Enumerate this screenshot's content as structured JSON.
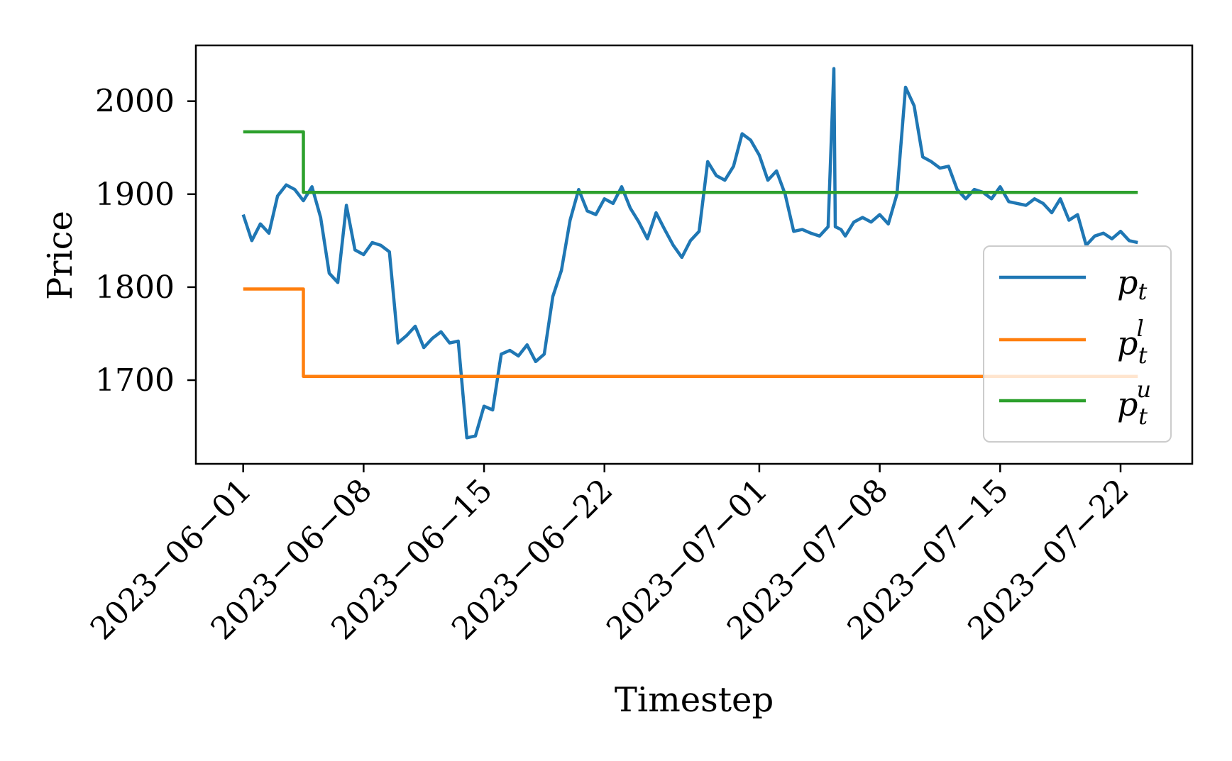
{
  "chart_data": {
    "type": "line",
    "xlabel": "Timestep",
    "ylabel": "Price",
    "x_ticks": [
      "2023−06−01",
      "2023−06−08",
      "2023−06−15",
      "2023−06−22",
      "2023−07−01",
      "2023−07−08",
      "2023−07−15",
      "2023−07−22"
    ],
    "y_ticks": [
      "1700",
      "1800",
      "1900",
      "2000"
    ],
    "ylim": [
      1610,
      2060
    ],
    "xlim": [
      "2023-05-29T06:00",
      "2023-07-26T04:00"
    ],
    "grid": false,
    "legend_position": "right",
    "series": [
      {
        "name": "p_t",
        "color": "#1f77b4",
        "points": [
          [
            "2023-06-01",
            1878
          ],
          [
            "2023-06-01T12:00",
            1850
          ],
          [
            "2023-06-02",
            1868
          ],
          [
            "2023-06-02T12:00",
            1858
          ],
          [
            "2023-06-03",
            1898
          ],
          [
            "2023-06-03T12:00",
            1910
          ],
          [
            "2023-06-04",
            1905
          ],
          [
            "2023-06-04T12:00",
            1893
          ],
          [
            "2023-06-05",
            1908
          ],
          [
            "2023-06-05T12:00",
            1875
          ],
          [
            "2023-06-06",
            1815
          ],
          [
            "2023-06-06T12:00",
            1805
          ],
          [
            "2023-06-07",
            1888
          ],
          [
            "2023-06-07T12:00",
            1840
          ],
          [
            "2023-06-08",
            1835
          ],
          [
            "2023-06-08T12:00",
            1848
          ],
          [
            "2023-06-09",
            1845
          ],
          [
            "2023-06-09T12:00",
            1838
          ],
          [
            "2023-06-10",
            1740
          ],
          [
            "2023-06-10T12:00",
            1748
          ],
          [
            "2023-06-11",
            1758
          ],
          [
            "2023-06-11T12:00",
            1735
          ],
          [
            "2023-06-12",
            1745
          ],
          [
            "2023-06-12T12:00",
            1752
          ],
          [
            "2023-06-13",
            1740
          ],
          [
            "2023-06-13T12:00",
            1742
          ],
          [
            "2023-06-14",
            1638
          ],
          [
            "2023-06-14T12:00",
            1640
          ],
          [
            "2023-06-15",
            1672
          ],
          [
            "2023-06-15T12:00",
            1668
          ],
          [
            "2023-06-16",
            1728
          ],
          [
            "2023-06-16T12:00",
            1732
          ],
          [
            "2023-06-17",
            1726
          ],
          [
            "2023-06-17T12:00",
            1738
          ],
          [
            "2023-06-18",
            1720
          ],
          [
            "2023-06-18T12:00",
            1728
          ],
          [
            "2023-06-19",
            1790
          ],
          [
            "2023-06-19T12:00",
            1818
          ],
          [
            "2023-06-20",
            1872
          ],
          [
            "2023-06-20T12:00",
            1905
          ],
          [
            "2023-06-21",
            1882
          ],
          [
            "2023-06-21T12:00",
            1878
          ],
          [
            "2023-06-22",
            1895
          ],
          [
            "2023-06-22T12:00",
            1890
          ],
          [
            "2023-06-23",
            1908
          ],
          [
            "2023-06-23T12:00",
            1885
          ],
          [
            "2023-06-24",
            1870
          ],
          [
            "2023-06-24T12:00",
            1852
          ],
          [
            "2023-06-25",
            1880
          ],
          [
            "2023-06-25T12:00",
            1862
          ],
          [
            "2023-06-26",
            1845
          ],
          [
            "2023-06-26T12:00",
            1832
          ],
          [
            "2023-06-27",
            1850
          ],
          [
            "2023-06-27T12:00",
            1860
          ],
          [
            "2023-06-28",
            1935
          ],
          [
            "2023-06-28T12:00",
            1920
          ],
          [
            "2023-06-29",
            1915
          ],
          [
            "2023-06-29T12:00",
            1930
          ],
          [
            "2023-06-30",
            1965
          ],
          [
            "2023-06-30T12:00",
            1958
          ],
          [
            "2023-07-01",
            1942
          ],
          [
            "2023-07-01T12:00",
            1915
          ],
          [
            "2023-07-02",
            1925
          ],
          [
            "2023-07-02T12:00",
            1900
          ],
          [
            "2023-07-03",
            1860
          ],
          [
            "2023-07-03T12:00",
            1862
          ],
          [
            "2023-07-04",
            1858
          ],
          [
            "2023-07-04T12:00",
            1855
          ],
          [
            "2023-07-05",
            1865
          ],
          [
            "2023-07-05T08:00",
            2035
          ],
          [
            "2023-07-05T10:00",
            1865
          ],
          [
            "2023-07-05T18:00",
            1862
          ],
          [
            "2023-07-06",
            1855
          ],
          [
            "2023-07-06T12:00",
            1870
          ],
          [
            "2023-07-07",
            1875
          ],
          [
            "2023-07-07T12:00",
            1870
          ],
          [
            "2023-07-08",
            1878
          ],
          [
            "2023-07-08T12:00",
            1868
          ],
          [
            "2023-07-09",
            1900
          ],
          [
            "2023-07-09T12:00",
            2015
          ],
          [
            "2023-07-10",
            1995
          ],
          [
            "2023-07-10T12:00",
            1940
          ],
          [
            "2023-07-11",
            1935
          ],
          [
            "2023-07-11T12:00",
            1928
          ],
          [
            "2023-07-12",
            1930
          ],
          [
            "2023-07-12T12:00",
            1905
          ],
          [
            "2023-07-13",
            1895
          ],
          [
            "2023-07-13T12:00",
            1905
          ],
          [
            "2023-07-14",
            1902
          ],
          [
            "2023-07-14T12:00",
            1895
          ],
          [
            "2023-07-15",
            1908
          ],
          [
            "2023-07-15T12:00",
            1892
          ],
          [
            "2023-07-16",
            1890
          ],
          [
            "2023-07-16T12:00",
            1888
          ],
          [
            "2023-07-17",
            1895
          ],
          [
            "2023-07-17T12:00",
            1890
          ],
          [
            "2023-07-18",
            1880
          ],
          [
            "2023-07-18T12:00",
            1895
          ],
          [
            "2023-07-19",
            1872
          ],
          [
            "2023-07-19T12:00",
            1878
          ],
          [
            "2023-07-20",
            1845
          ],
          [
            "2023-07-20T12:00",
            1855
          ],
          [
            "2023-07-21",
            1858
          ],
          [
            "2023-07-21T12:00",
            1852
          ],
          [
            "2023-07-22",
            1860
          ],
          [
            "2023-07-22T12:00",
            1850
          ],
          [
            "2023-07-23",
            1848
          ]
        ]
      },
      {
        "name": "p_t^l",
        "color": "#ff7f0e",
        "points": [
          [
            "2023-06-01",
            1798
          ],
          [
            "2023-06-04T12:00",
            1798
          ],
          [
            "2023-06-04T12:00",
            1704
          ],
          [
            "2023-07-23",
            1704
          ]
        ]
      },
      {
        "name": "p_t^u",
        "color": "#2ca02c",
        "points": [
          [
            "2023-06-01",
            1967
          ],
          [
            "2023-06-04T12:00",
            1967
          ],
          [
            "2023-06-04T12:00",
            1902
          ],
          [
            "2023-07-23",
            1902
          ]
        ]
      }
    ]
  }
}
